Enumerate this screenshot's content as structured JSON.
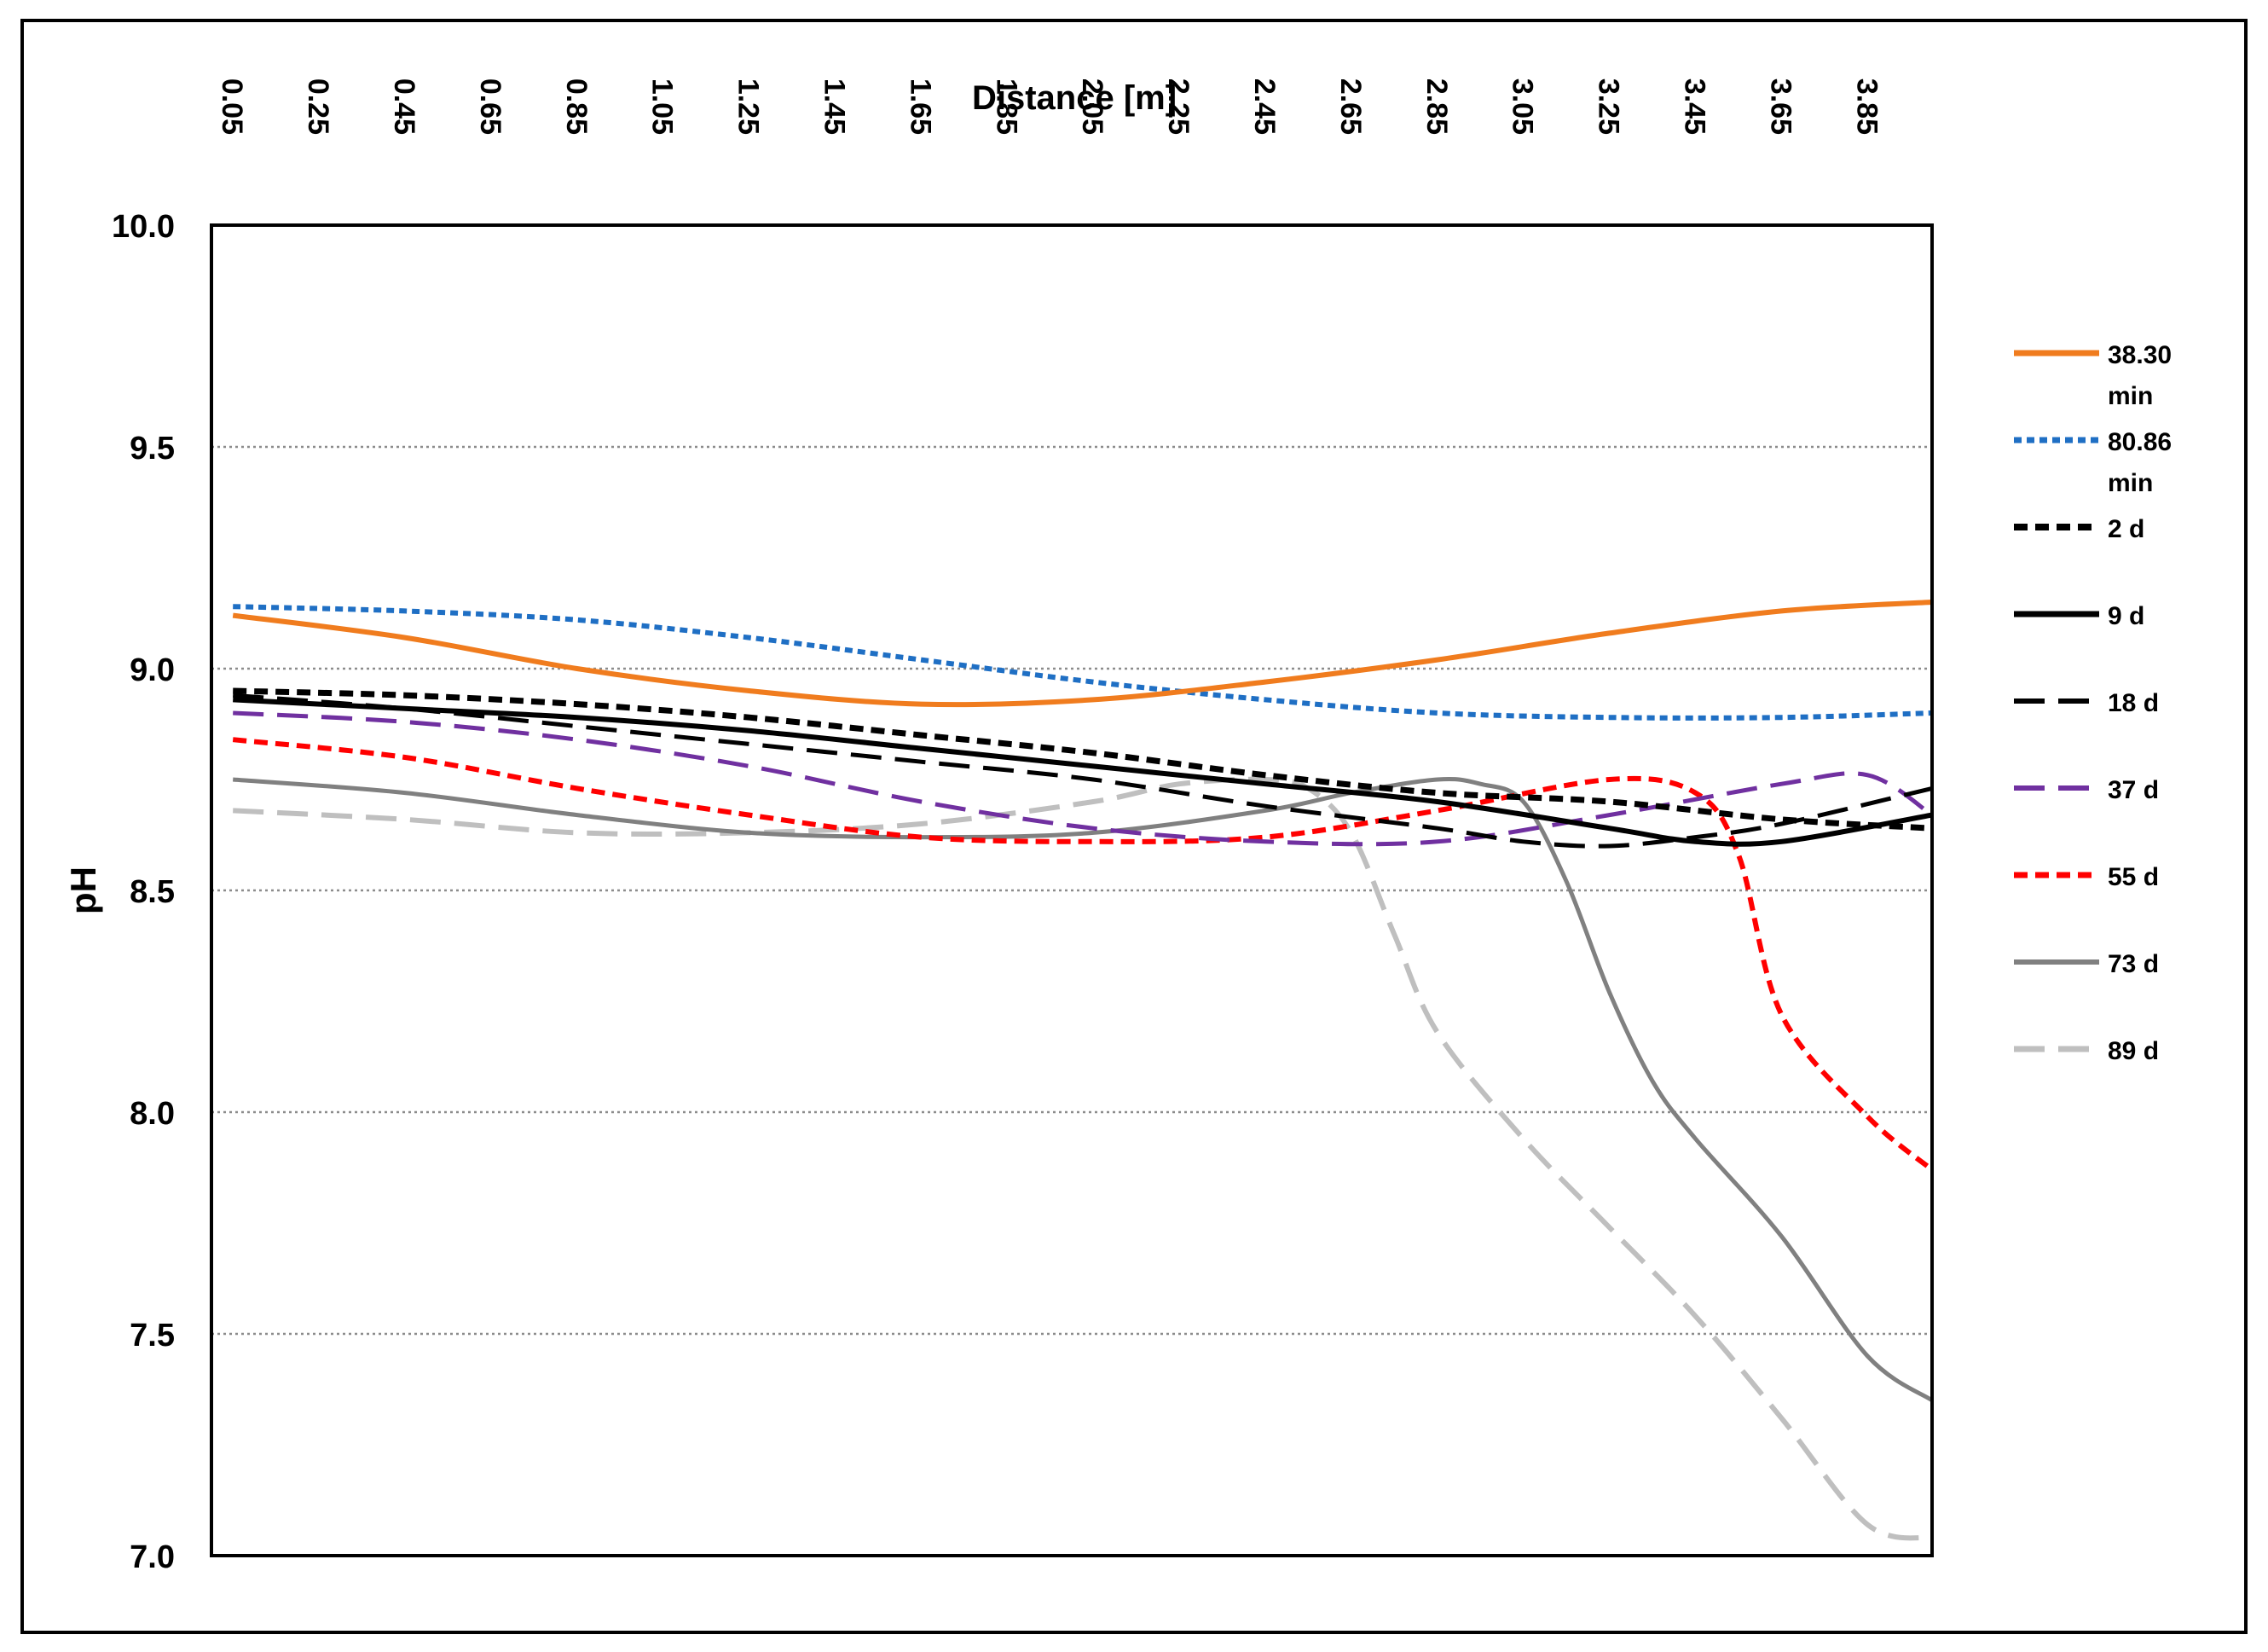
{
  "chart_data": {
    "type": "line",
    "title": "",
    "xlabel": "Distance [m]",
    "ylabel": "pH",
    "x_axis_position": "top",
    "x_tick_labels": [
      "0.05",
      "0.25",
      "0.45",
      "0.65",
      "0.85",
      "1.05",
      "1.25",
      "1.45",
      "1.65",
      "1.85",
      "2.05",
      "2.25",
      "2.45",
      "2.65",
      "2.85",
      "3.05",
      "3.25",
      "3.45",
      "3.65",
      "3.85"
    ],
    "xlim": [
      0.0,
      4.0
    ],
    "ylim": [
      7.0,
      10.0
    ],
    "y_ticks": [
      7.0,
      7.5,
      8.0,
      8.5,
      9.0,
      9.5,
      10.0
    ],
    "y_tick_labels": [
      "7.0",
      "7.5",
      "8.0",
      "8.5",
      "9.0",
      "9.5",
      "10.0"
    ],
    "grid": "horizontal-dotted",
    "legend_position": "right",
    "series": [
      {
        "name": "38.30 min",
        "color": "#f07c1e",
        "style": "solid",
        "width": 6,
        "x": [
          0.05,
          0.45,
          0.85,
          1.25,
          1.65,
          2.05,
          2.45,
          2.85,
          3.25,
          3.65,
          4.0
        ],
        "y": [
          9.12,
          9.07,
          9.0,
          8.95,
          8.92,
          8.93,
          8.97,
          9.02,
          9.08,
          9.13,
          9.15
        ]
      },
      {
        "name": "80.86 min",
        "color": "#1f6fc4",
        "style": "dotted",
        "width": 6,
        "x": [
          0.05,
          0.45,
          0.85,
          1.25,
          1.65,
          2.05,
          2.45,
          2.85,
          3.25,
          3.65,
          4.0
        ],
        "y": [
          9.14,
          9.13,
          9.11,
          9.07,
          9.02,
          8.97,
          8.93,
          8.9,
          8.89,
          8.89,
          8.9
        ]
      },
      {
        "name": "2 d",
        "color": "#000000",
        "style": "short-dash",
        "width": 7,
        "x": [
          0.05,
          0.45,
          0.85,
          1.25,
          1.65,
          2.05,
          2.45,
          2.85,
          3.25,
          3.65,
          4.0
        ],
        "y": [
          8.95,
          8.94,
          8.92,
          8.89,
          8.85,
          8.81,
          8.76,
          8.72,
          8.7,
          8.66,
          8.64
        ]
      },
      {
        "name": "9 d",
        "color": "#000000",
        "style": "solid",
        "width": 6,
        "x": [
          0.05,
          0.45,
          0.85,
          1.25,
          1.65,
          2.05,
          2.45,
          2.85,
          3.25,
          3.45,
          3.65,
          4.0
        ],
        "y": [
          8.93,
          8.91,
          8.89,
          8.86,
          8.82,
          8.78,
          8.74,
          8.7,
          8.64,
          8.61,
          8.61,
          8.67
        ]
      },
      {
        "name": "18 d",
        "color": "#000000",
        "style": "long-dash",
        "width": 5,
        "x": [
          0.05,
          0.45,
          0.85,
          1.25,
          1.65,
          2.05,
          2.45,
          2.85,
          3.05,
          3.25,
          3.45,
          3.65,
          4.0
        ],
        "y": [
          8.94,
          8.91,
          8.87,
          8.83,
          8.79,
          8.75,
          8.69,
          8.64,
          8.61,
          8.6,
          8.62,
          8.65,
          8.73
        ]
      },
      {
        "name": "37 d",
        "color": "#7030a0",
        "style": "long-dash",
        "width": 5,
        "x": [
          0.05,
          0.45,
          0.85,
          1.25,
          1.65,
          2.05,
          2.45,
          2.85,
          3.25,
          3.65,
          3.85,
          4.0
        ],
        "y": [
          8.9,
          8.88,
          8.84,
          8.78,
          8.7,
          8.64,
          8.61,
          8.61,
          8.67,
          8.74,
          8.76,
          8.67
        ]
      },
      {
        "name": "55 d",
        "color": "#ff0000",
        "style": "short-dash",
        "width": 6,
        "x": [
          0.05,
          0.45,
          0.85,
          1.25,
          1.65,
          2.05,
          2.45,
          2.85,
          3.25,
          3.45,
          3.55,
          3.65,
          3.85,
          4.0
        ],
        "y": [
          8.84,
          8.8,
          8.73,
          8.67,
          8.62,
          8.61,
          8.62,
          8.68,
          8.75,
          8.72,
          8.58,
          8.22,
          7.99,
          7.87
        ]
      },
      {
        "name": "73 d",
        "color": "#808080",
        "style": "solid",
        "width": 5,
        "x": [
          0.05,
          0.45,
          0.85,
          1.25,
          1.65,
          2.05,
          2.45,
          2.65,
          2.85,
          2.95,
          3.05,
          3.15,
          3.25,
          3.35,
          3.45,
          3.65,
          3.85,
          4.0
        ],
        "y": [
          8.75,
          8.72,
          8.67,
          8.63,
          8.62,
          8.63,
          8.68,
          8.72,
          8.75,
          8.74,
          8.7,
          8.52,
          8.27,
          8.07,
          7.94,
          7.72,
          7.45,
          7.35
        ]
      },
      {
        "name": "89 d",
        "color": "#bfbfbf",
        "style": "long-dash",
        "width": 6,
        "x": [
          0.05,
          0.45,
          0.85,
          1.25,
          1.65,
          2.05,
          2.25,
          2.45,
          2.55,
          2.65,
          2.75,
          2.85,
          3.05,
          3.25,
          3.45,
          3.65,
          3.85,
          4.0
        ],
        "y": [
          8.68,
          8.66,
          8.63,
          8.63,
          8.65,
          8.7,
          8.74,
          8.75,
          8.73,
          8.63,
          8.4,
          8.18,
          7.94,
          7.74,
          7.54,
          7.31,
          7.07,
          7.04
        ]
      }
    ]
  }
}
